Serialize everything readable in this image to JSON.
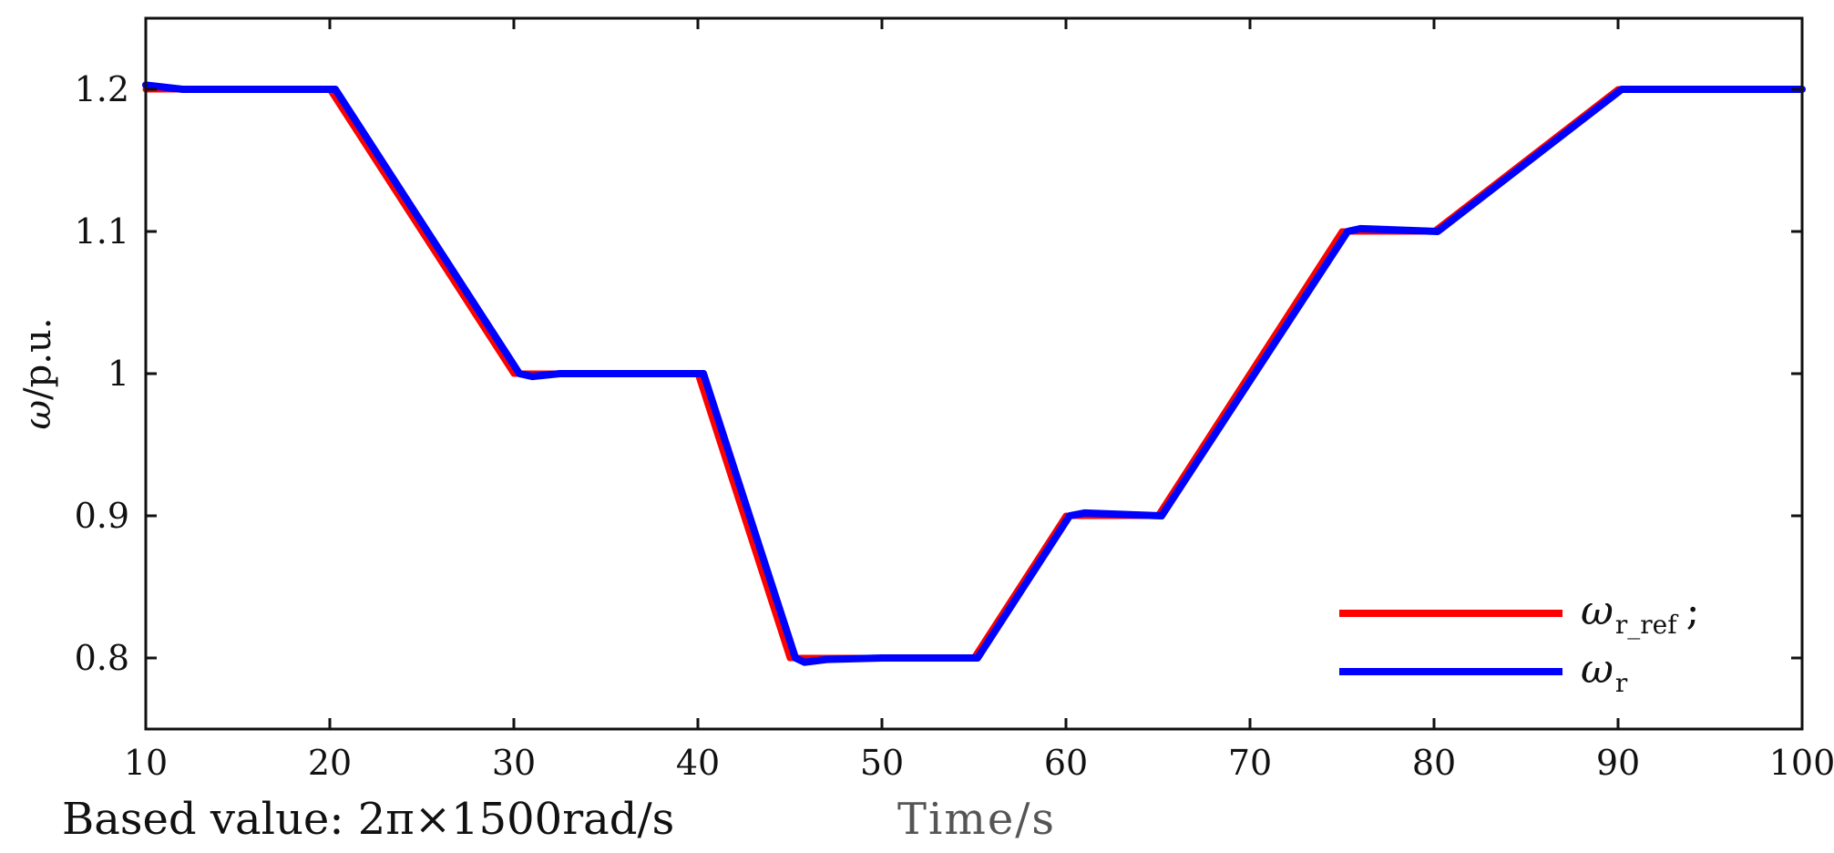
{
  "chart_data": {
    "type": "line",
    "title": "",
    "xlabel": "Time/s",
    "ylabel_symbol": "ω",
    "ylabel_unit": "/p.u.",
    "note": "Based value: 2π×1500rad/s",
    "xlim": [
      10,
      100
    ],
    "ylim": [
      0.75,
      1.25
    ],
    "xticks": [
      10,
      20,
      30,
      40,
      50,
      60,
      70,
      80,
      90,
      100
    ],
    "yticks": [
      0.8,
      0.9,
      1,
      1.1,
      1.2
    ],
    "ytick_labels": [
      "0.8",
      "0.9",
      "1",
      "1.1",
      "1.2"
    ],
    "grid": false,
    "legend_position": "bottom-right",
    "series": [
      {
        "name": "ω",
        "name_sub": "r_ref",
        "name_suffix": ";",
        "color": "#ff0000",
        "x": [
          10,
          20,
          30,
          40,
          45,
          55,
          60,
          65,
          75,
          80,
          90,
          100
        ],
        "y": [
          1.2,
          1.2,
          1.0,
          1.0,
          0.8,
          0.8,
          0.9,
          0.9,
          1.1,
          1.1,
          1.2,
          1.2
        ]
      },
      {
        "name": "ω",
        "name_sub": "r",
        "name_suffix": "",
        "color": "#0000ff",
        "x": [
          10,
          12,
          20.3,
          30.3,
          31,
          32.5,
          40.3,
          45.3,
          45.8,
          47,
          50,
          55.2,
          60.2,
          61,
          65.2,
          75.3,
          76,
          80.2,
          90.2,
          100
        ],
        "y": [
          1.203,
          1.2,
          1.2,
          1.0,
          0.998,
          1.0,
          1.0,
          0.8,
          0.797,
          0.799,
          0.8,
          0.8,
          0.9,
          0.902,
          0.9,
          1.1,
          1.102,
          1.1,
          1.2,
          1.2
        ]
      }
    ]
  }
}
